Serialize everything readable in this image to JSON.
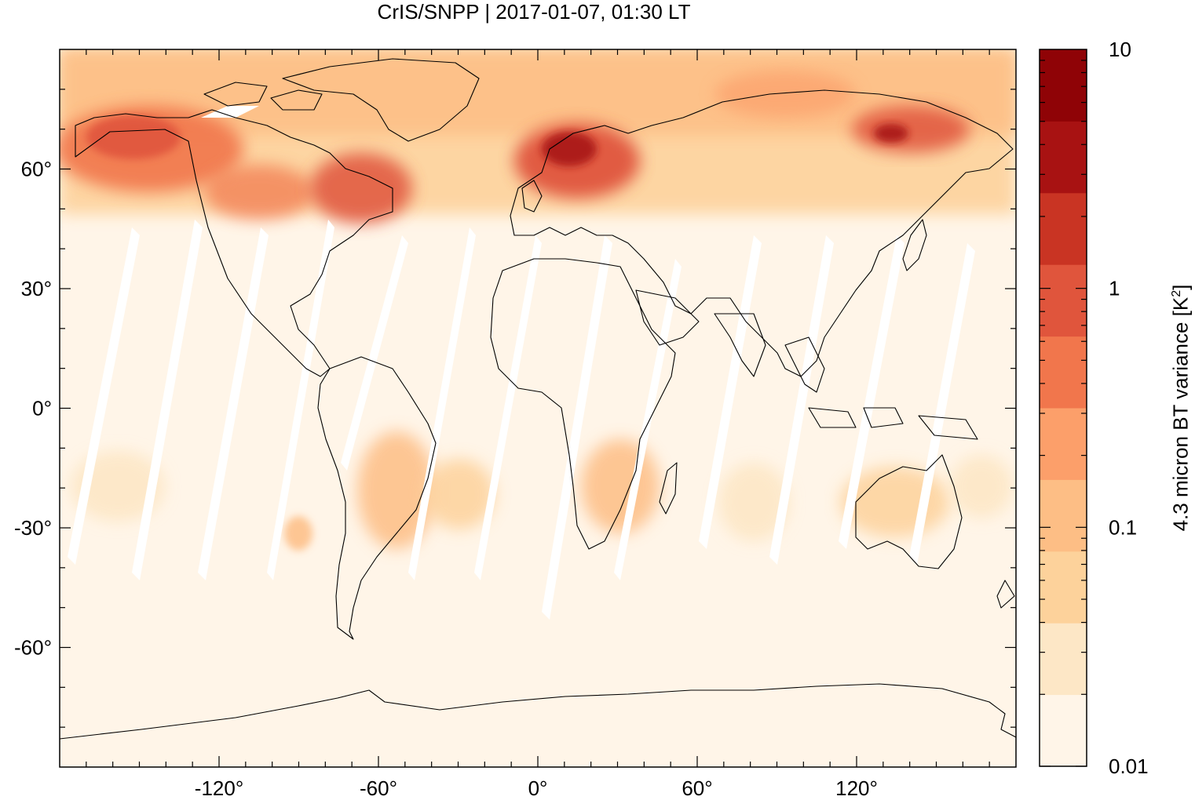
{
  "title": "CrIS/SNPP | 2017-01-07, 01:30 LT",
  "map": {
    "projection": "plate carrée",
    "lon_ticks": [
      "-120°",
      "-60°",
      "0°",
      "60°",
      "120°"
    ],
    "lat_ticks": [
      "60°",
      "30°",
      "0°",
      "-30°",
      "-60°"
    ],
    "background_color": "#fff5e8",
    "coastline_color": "#000000"
  },
  "colorbar": {
    "title_main": "4.3 micron BT variance [K",
    "title_sup": "2",
    "title_end": "]",
    "tick_labels": [
      "10",
      "1",
      "0.1",
      "0.01"
    ],
    "scale": "log",
    "range": [
      0.01,
      10
    ],
    "colors": [
      "#fff5e8",
      "#fde7c6",
      "#fdd29b",
      "#fdbe85",
      "#fc9f6a",
      "#f1764c",
      "#e0553c",
      "#c93423",
      "#a81212",
      "#8f0306"
    ]
  },
  "chart_data": {
    "type": "heatmap",
    "title": "CrIS/SNPP | 2017-01-07, 01:30 LT",
    "xlabel": "",
    "ylabel": "",
    "colorbar_label": "4.3 micron BT variance [K²]",
    "xlim": [
      -180,
      180
    ],
    "ylim": [
      -90,
      90
    ],
    "value_range": [
      0.01,
      10
    ],
    "regions_of_high_variance": [
      {
        "area": "Scandinavia",
        "approx_value": 5
      },
      {
        "area": "Alaska / NW Canada",
        "approx_value": 2
      },
      {
        "area": "Eastern Canada / Labrador",
        "approx_value": 2
      },
      {
        "area": "Eastern Siberia",
        "approx_value": 3
      },
      {
        "area": "South America interior",
        "approx_value": 0.2
      },
      {
        "area": "Southern Africa",
        "approx_value": 0.2
      },
      {
        "area": "Australia",
        "approx_value": 0.1
      }
    ]
  }
}
